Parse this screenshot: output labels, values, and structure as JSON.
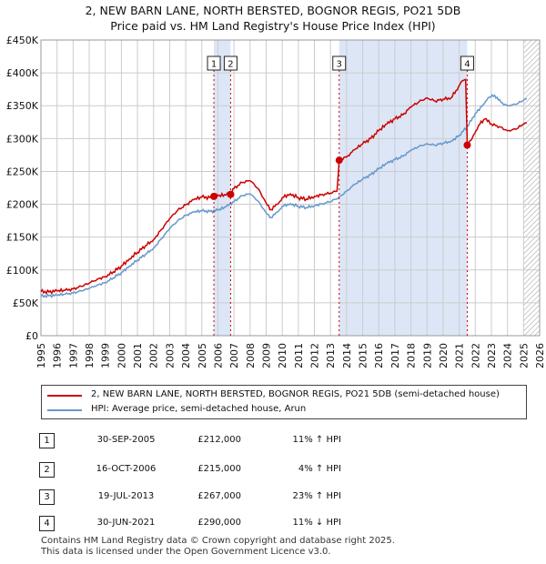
{
  "title_line1": "2, NEW BARN LANE, NORTH BERSTED, BOGNOR REGIS, PO21 5DB",
  "title_line2": "Price paid vs. HM Land Registry's House Price Index (HPI)",
  "colors": {
    "property": "#cc0000",
    "hpi": "#6699cc",
    "shade": "#dde6f6",
    "grid": "#cccccc"
  },
  "chart_data": {
    "type": "line",
    "ylim": [
      0,
      450000
    ],
    "xlim": [
      1995,
      2026
    ],
    "y_ticks": [
      0,
      50000,
      100000,
      150000,
      200000,
      250000,
      300000,
      350000,
      400000,
      450000
    ],
    "y_tick_labels": [
      "£0",
      "£50K",
      "£100K",
      "£150K",
      "£200K",
      "£250K",
      "£300K",
      "£350K",
      "£400K",
      "£450K"
    ],
    "x_ticks": [
      1995,
      1996,
      1997,
      1998,
      1999,
      2000,
      2001,
      2002,
      2003,
      2004,
      2005,
      2006,
      2007,
      2008,
      2009,
      2010,
      2011,
      2012,
      2013,
      2014,
      2015,
      2016,
      2017,
      2018,
      2019,
      2020,
      2021,
      2022,
      2023,
      2024,
      2025,
      2026
    ],
    "x_tick_labels": [
      "1995",
      "1996",
      "1997",
      "1998",
      "1999",
      "2000",
      "2001",
      "2002",
      "2003",
      "2004",
      "2005",
      "2006",
      "2007",
      "2008",
      "2009",
      "2010",
      "2011",
      "2012",
      "2013",
      "2014",
      "2015",
      "2016",
      "2017",
      "2018",
      "2019",
      "2020",
      "2021",
      "2022",
      "2023",
      "2024",
      "2025",
      "2026"
    ],
    "shaded_ranges": [
      [
        2005.75,
        2006.79
      ],
      [
        2013.54,
        2021.5
      ]
    ],
    "hatched_from": 2025.0,
    "series": [
      {
        "name": "2, NEW BARN LANE, NORTH BERSTED, BOGNOR REGIS, PO21 5DB (semi-detached house)",
        "points": [
          [
            1995.0,
            67000
          ],
          [
            1995.5,
            66500
          ],
          [
            1996.0,
            68000
          ],
          [
            1996.5,
            69000
          ],
          [
            1997.0,
            71000
          ],
          [
            1997.5,
            75000
          ],
          [
            1998.0,
            80000
          ],
          [
            1998.5,
            86000
          ],
          [
            1999.0,
            90000
          ],
          [
            1999.5,
            97000
          ],
          [
            2000.0,
            106000
          ],
          [
            2000.5,
            117000
          ],
          [
            2001.0,
            127000
          ],
          [
            2001.5,
            137000
          ],
          [
            2002.0,
            146000
          ],
          [
            2002.5,
            162000
          ],
          [
            2003.0,
            178000
          ],
          [
            2003.5,
            191000
          ],
          [
            2004.0,
            199000
          ],
          [
            2004.5,
            207000
          ],
          [
            2005.0,
            211000
          ],
          [
            2005.5,
            210000
          ],
          [
            2005.75,
            212000
          ],
          [
            2006.0,
            213000
          ],
          [
            2006.5,
            214000
          ],
          [
            2006.79,
            215000
          ],
          [
            2007.0,
            224000
          ],
          [
            2007.5,
            233000
          ],
          [
            2008.0,
            236000
          ],
          [
            2008.5,
            224000
          ],
          [
            2009.0,
            202000
          ],
          [
            2009.3,
            192000
          ],
          [
            2009.7,
            200000
          ],
          [
            2010.0,
            210000
          ],
          [
            2010.5,
            216000
          ],
          [
            2011.0,
            210000
          ],
          [
            2011.5,
            208000
          ],
          [
            2012.0,
            212000
          ],
          [
            2012.5,
            215000
          ],
          [
            2013.0,
            217000
          ],
          [
            2013.4,
            220000
          ],
          [
            2013.54,
            267000
          ],
          [
            2014.0,
            272000
          ],
          [
            2014.5,
            283000
          ],
          [
            2015.0,
            292000
          ],
          [
            2015.5,
            300000
          ],
          [
            2016.0,
            312000
          ],
          [
            2016.5,
            322000
          ],
          [
            2017.0,
            330000
          ],
          [
            2017.5,
            336000
          ],
          [
            2018.0,
            348000
          ],
          [
            2018.5,
            356000
          ],
          [
            2019.0,
            362000
          ],
          [
            2019.5,
            357000
          ],
          [
            2020.0,
            360000
          ],
          [
            2020.5,
            362000
          ],
          [
            2020.8,
            373000
          ],
          [
            2021.2,
            388000
          ],
          [
            2021.4,
            390000
          ],
          [
            2021.5,
            290000
          ],
          [
            2021.8,
            300000
          ],
          [
            2022.2,
            320000
          ],
          [
            2022.6,
            330000
          ],
          [
            2023.0,
            322000
          ],
          [
            2023.5,
            318000
          ],
          [
            2024.0,
            312000
          ],
          [
            2024.5,
            314000
          ],
          [
            2025.0,
            322000
          ],
          [
            2025.2,
            324000
          ]
        ]
      },
      {
        "name": "HPI: Average price, semi-detached house, Arun",
        "points": [
          [
            1995.0,
            60000
          ],
          [
            1995.5,
            60500
          ],
          [
            1996.0,
            61500
          ],
          [
            1996.5,
            63000
          ],
          [
            1997.0,
            65000
          ],
          [
            1997.5,
            68000
          ],
          [
            1998.0,
            72000
          ],
          [
            1998.5,
            77000
          ],
          [
            1999.0,
            81000
          ],
          [
            1999.5,
            88000
          ],
          [
            2000.0,
            96000
          ],
          [
            2000.5,
            106000
          ],
          [
            2001.0,
            115000
          ],
          [
            2001.5,
            124000
          ],
          [
            2002.0,
            133000
          ],
          [
            2002.5,
            148000
          ],
          [
            2003.0,
            163000
          ],
          [
            2003.5,
            175000
          ],
          [
            2004.0,
            183000
          ],
          [
            2004.5,
            188000
          ],
          [
            2005.0,
            190000
          ],
          [
            2005.5,
            189000
          ],
          [
            2006.0,
            191000
          ],
          [
            2006.5,
            196000
          ],
          [
            2007.0,
            204000
          ],
          [
            2007.5,
            213000
          ],
          [
            2008.0,
            216000
          ],
          [
            2008.5,
            205000
          ],
          [
            2009.0,
            187000
          ],
          [
            2009.3,
            180000
          ],
          [
            2009.7,
            188000
          ],
          [
            2010.0,
            197000
          ],
          [
            2010.5,
            201000
          ],
          [
            2011.0,
            197000
          ],
          [
            2011.5,
            195000
          ],
          [
            2012.0,
            198000
          ],
          [
            2012.5,
            201000
          ],
          [
            2013.0,
            204000
          ],
          [
            2013.5,
            210000
          ],
          [
            2014.0,
            220000
          ],
          [
            2014.5,
            230000
          ],
          [
            2015.0,
            238000
          ],
          [
            2015.5,
            245000
          ],
          [
            2016.0,
            254000
          ],
          [
            2016.5,
            262000
          ],
          [
            2017.0,
            268000
          ],
          [
            2017.5,
            273000
          ],
          [
            2018.0,
            282000
          ],
          [
            2018.5,
            288000
          ],
          [
            2019.0,
            292000
          ],
          [
            2019.5,
            290000
          ],
          [
            2020.0,
            293000
          ],
          [
            2020.5,
            296000
          ],
          [
            2021.0,
            305000
          ],
          [
            2021.5,
            318000
          ],
          [
            2022.0,
            338000
          ],
          [
            2022.5,
            352000
          ],
          [
            2022.8,
            362000
          ],
          [
            2023.2,
            366000
          ],
          [
            2023.6,
            355000
          ],
          [
            2024.0,
            350000
          ],
          [
            2024.5,
            352000
          ],
          [
            2025.0,
            358000
          ],
          [
            2025.2,
            361000
          ]
        ]
      }
    ],
    "markers": [
      {
        "label": "1",
        "x": 2005.75,
        "y": 212000
      },
      {
        "label": "2",
        "x": 2006.79,
        "y": 215000
      },
      {
        "label": "3",
        "x": 2013.54,
        "y": 267000
      },
      {
        "label": "4",
        "x": 2021.5,
        "y": 290000
      }
    ]
  },
  "legend": {
    "property": "2, NEW BARN LANE, NORTH BERSTED, BOGNOR REGIS, PO21 5DB (semi-detached house)",
    "hpi": "HPI: Average price, semi-detached house, Arun"
  },
  "sales": [
    {
      "num": "1",
      "date": "30-SEP-2005",
      "price": "£212,000",
      "hpi": "11% ↑ HPI"
    },
    {
      "num": "2",
      "date": "16-OCT-2006",
      "price": "£215,000",
      "hpi": "4% ↑ HPI"
    },
    {
      "num": "3",
      "date": "19-JUL-2013",
      "price": "£267,000",
      "hpi": "23% ↑ HPI"
    },
    {
      "num": "4",
      "date": "30-JUN-2021",
      "price": "£290,000",
      "hpi": "11% ↓ HPI"
    }
  ],
  "footer": {
    "line1": "Contains HM Land Registry data © Crown copyright and database right 2025.",
    "line2": "This data is licensed under the Open Government Licence v3.0."
  }
}
